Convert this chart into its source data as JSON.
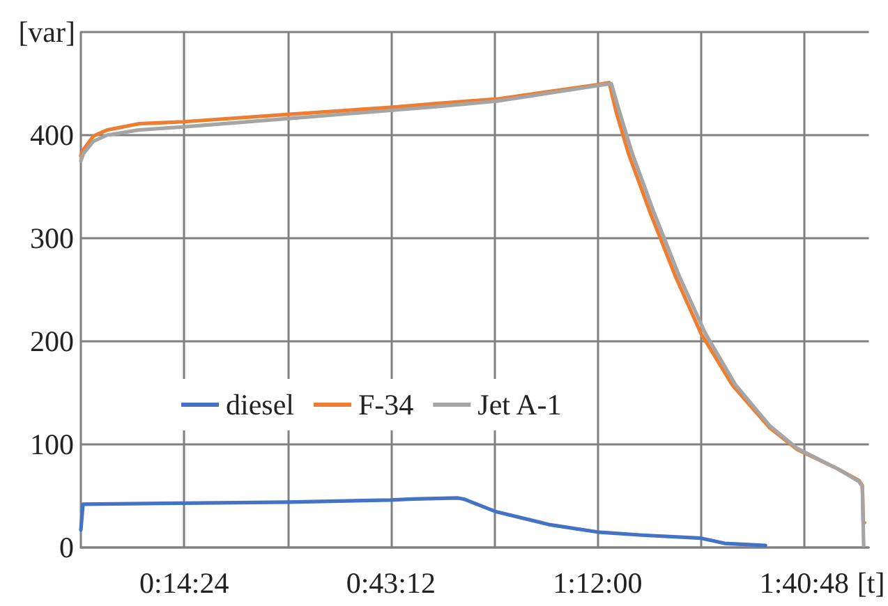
{
  "chart_data": {
    "type": "line",
    "xlabel": "[t]",
    "ylabel": "[var]",
    "xlim": [
      0,
      1.83
    ],
    "ylim": [
      0,
      500
    ],
    "xticks": [
      {
        "value": 0.24,
        "label": "0:14:24"
      },
      {
        "value": 0.48,
        "label": null
      },
      {
        "value": 0.72,
        "label": "0:43:12"
      },
      {
        "value": 0.96,
        "label": null
      },
      {
        "value": 1.2,
        "label": "1:12:00"
      },
      {
        "value": 1.44,
        "label": null
      },
      {
        "value": 1.68,
        "label": "1:40:48"
      }
    ],
    "yticks": [
      0,
      100,
      200,
      300,
      400,
      {
        "value": 500,
        "label": null
      }
    ],
    "grid": true,
    "legend": "bottom left",
    "series": [
      {
        "name": "diesel",
        "color": "#4472c4",
        "x": [
          0,
          0.005,
          0.24,
          0.48,
          0.72,
          0.771,
          0.876,
          0.889,
          0.962,
          1.09,
          1.2,
          1.303,
          1.441,
          1.495,
          1.59
        ],
        "values": [
          17,
          42,
          43,
          44,
          46,
          47,
          48,
          47,
          35,
          22,
          15,
          12,
          9,
          4,
          2
        ]
      },
      {
        "name": "F-34",
        "color": "#ed7d31",
        "x": [
          0,
          0.006,
          0.029,
          0.061,
          0.134,
          0.239,
          0.478,
          0.72,
          0.835,
          0.966,
          1.2,
          1.227,
          1.243,
          1.272,
          1.323,
          1.383,
          1.441,
          1.514,
          1.6,
          1.664,
          1.759,
          1.807,
          1.815,
          1.817,
          1.82
        ],
        "values": [
          380,
          386,
          399,
          405,
          411,
          413,
          420,
          427,
          431,
          435,
          449,
          451,
          423,
          382,
          324,
          261,
          207,
          157,
          116,
          95,
          76,
          65,
          60,
          25,
          24
        ]
      },
      {
        "name": "Jet A-1",
        "color": "#a5a5a5",
        "x": [
          0,
          0.006,
          0.029,
          0.061,
          0.134,
          0.239,
          0.478,
          0.72,
          0.835,
          0.966,
          1.2,
          1.232,
          1.25,
          1.28,
          1.33,
          1.39,
          1.45,
          1.52,
          1.6,
          1.664,
          1.759,
          1.807,
          1.815,
          1.818
        ],
        "values": [
          375,
          382,
          394,
          400,
          405,
          408,
          416,
          424,
          428,
          433,
          448,
          450,
          424,
          383,
          326,
          263,
          208,
          158,
          118,
          96,
          76,
          64,
          59,
          2
        ]
      }
    ]
  }
}
